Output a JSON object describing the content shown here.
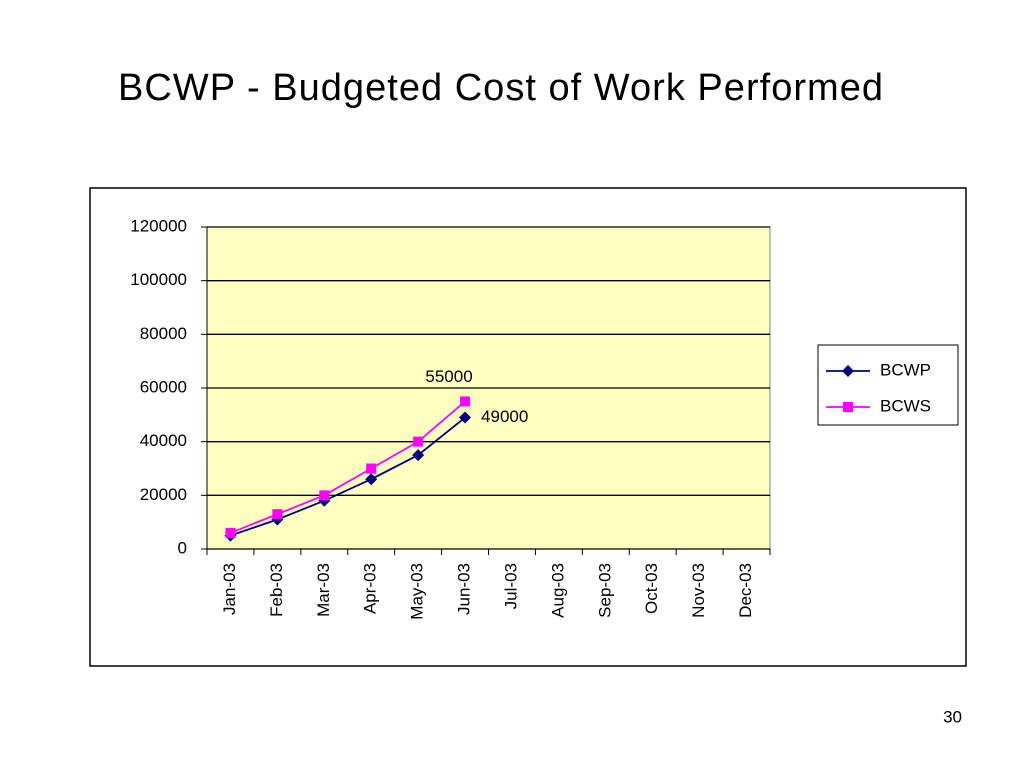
{
  "chart_data": {
    "type": "line",
    "title": "BCWP - Budgeted Cost of Work Performed",
    "categories": [
      "Jan-03",
      "Feb-03",
      "Mar-03",
      "Apr-03",
      "May-03",
      "Jun-03",
      "Jul-03",
      "Aug-03",
      "Sep-03",
      "Oct-03",
      "Nov-03",
      "Dec-03"
    ],
    "series": [
      {
        "name": "BCWP",
        "color": "#000080",
        "values": [
          5000,
          11000,
          18000,
          26000,
          35000,
          49000,
          null,
          null,
          null,
          null,
          null,
          null
        ]
      },
      {
        "name": "BCWS",
        "color": "#ff00ff",
        "values": [
          6000,
          13000,
          20000,
          30000,
          40000,
          55000,
          null,
          null,
          null,
          null,
          null,
          null
        ]
      }
    ],
    "ylim": [
      0,
      120000
    ],
    "yticks": [
      0,
      20000,
      40000,
      60000,
      80000,
      100000,
      120000
    ],
    "grid": true,
    "legend": "right",
    "plot_background": "#ffffc0"
  },
  "page_number": "30"
}
